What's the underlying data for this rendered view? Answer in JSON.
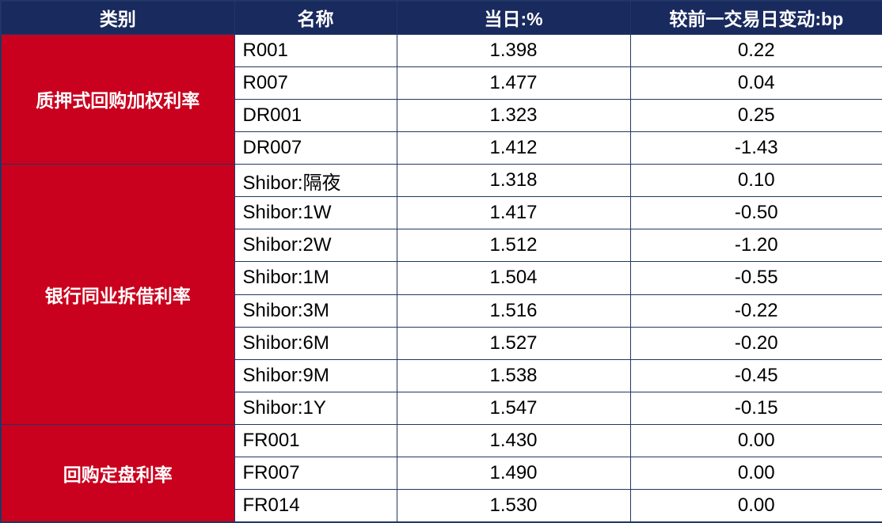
{
  "table": {
    "headers": [
      "类别",
      "名称",
      "当日:%",
      "较前一交易日变动:bp"
    ],
    "groups": [
      {
        "category": "质押式回购加权利率",
        "rows": [
          {
            "name": "R001",
            "value": "1.398",
            "change": "0.22"
          },
          {
            "name": "R007",
            "value": "1.477",
            "change": "0.04"
          },
          {
            "name": "DR001",
            "value": "1.323",
            "change": "0.25"
          },
          {
            "name": "DR007",
            "value": "1.412",
            "change": "-1.43"
          }
        ]
      },
      {
        "category": "银行同业拆借利率",
        "rows": [
          {
            "name": "Shibor:隔夜",
            "value": "1.318",
            "change": "0.10"
          },
          {
            "name": "Shibor:1W",
            "value": "1.417",
            "change": "-0.50"
          },
          {
            "name": "Shibor:2W",
            "value": "1.512",
            "change": "-1.20"
          },
          {
            "name": "Shibor:1M",
            "value": "1.504",
            "change": "-0.55"
          },
          {
            "name": "Shibor:3M",
            "value": "1.516",
            "change": "-0.22"
          },
          {
            "name": "Shibor:6M",
            "value": "1.527",
            "change": "-0.20"
          },
          {
            "name": "Shibor:9M",
            "value": "1.538",
            "change": "-0.45"
          },
          {
            "name": "Shibor:1Y",
            "value": "1.547",
            "change": "-0.15"
          }
        ]
      },
      {
        "category": "回购定盘利率",
        "rows": [
          {
            "name": "FR001",
            "value": "1.430",
            "change": "0.00"
          },
          {
            "name": "FR007",
            "value": "1.490",
            "change": "0.00"
          },
          {
            "name": "FR014",
            "value": "1.530",
            "change": "0.00"
          }
        ]
      }
    ]
  },
  "colors": {
    "header_bg": "#192A5E",
    "category_bg": "#C9001E",
    "border": "#1F3864",
    "body_text": "#000000",
    "header_text": "#FFFFFF"
  },
  "chart_data": {
    "type": "table",
    "columns": [
      "类别",
      "名称",
      "当日:%",
      "较前一交易日变动:bp"
    ],
    "rows": [
      [
        "质押式回购加权利率",
        "R001",
        1.398,
        0.22
      ],
      [
        "质押式回购加权利率",
        "R007",
        1.477,
        0.04
      ],
      [
        "质押式回购加权利率",
        "DR001",
        1.323,
        0.25
      ],
      [
        "质押式回购加权利率",
        "DR007",
        1.412,
        -1.43
      ],
      [
        "银行同业拆借利率",
        "Shibor:隔夜",
        1.318,
        0.1
      ],
      [
        "银行同业拆借利率",
        "Shibor:1W",
        1.417,
        -0.5
      ],
      [
        "银行同业拆借利率",
        "Shibor:2W",
        1.512,
        -1.2
      ],
      [
        "银行同业拆借利率",
        "Shibor:1M",
        1.504,
        -0.55
      ],
      [
        "银行同业拆借利率",
        "Shibor:3M",
        1.516,
        -0.22
      ],
      [
        "银行同业拆借利率",
        "Shibor:6M",
        1.527,
        -0.2
      ],
      [
        "银行同业拆借利率",
        "Shibor:9M",
        1.538,
        -0.45
      ],
      [
        "银行同业拆借利率",
        "Shibor:1Y",
        1.547,
        -0.15
      ],
      [
        "回购定盘利率",
        "FR001",
        1.43,
        0.0
      ],
      [
        "回购定盘利率",
        "FR007",
        1.49,
        0.0
      ],
      [
        "回购定盘利率",
        "FR014",
        1.53,
        0.0
      ]
    ]
  }
}
